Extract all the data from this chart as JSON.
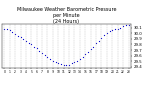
{
  "title": "Milwaukee Weather Barometric Pressure\nper Minute\n(24 Hours)",
  "title_fontsize": 3.5,
  "bg_color": "#ffffff",
  "dot_color": "#0000cc",
  "dot_size": 0.8,
  "grid_color": "#aaaaaa",
  "ylim": [
    29.38,
    30.16
  ],
  "xlim": [
    -0.5,
    23.5
  ],
  "xticks": [
    0,
    1,
    2,
    3,
    4,
    5,
    6,
    7,
    8,
    9,
    10,
    11,
    12,
    13,
    14,
    15,
    16,
    17,
    18,
    19,
    20,
    21,
    22,
    23
  ],
  "ytick_labels": [
    "29.4",
    "29.5",
    "29.6",
    "29.7",
    "29.8",
    "29.9",
    "30.0",
    "30.1"
  ],
  "ytick_values": [
    29.4,
    29.5,
    29.6,
    29.7,
    29.8,
    29.9,
    30.0,
    30.1
  ],
  "hours": [
    0,
    0.5,
    1,
    1.5,
    2,
    2.5,
    3,
    3.5,
    4,
    4.5,
    5,
    5.5,
    6,
    6.5,
    7,
    7.5,
    8,
    8.5,
    9,
    9.5,
    10,
    10.5,
    11,
    11.5,
    12,
    12.5,
    13,
    13.5,
    14,
    14.5,
    15,
    15.5,
    16,
    16.5,
    17,
    17.5,
    18,
    18.5,
    19,
    19.5,
    20,
    20.5,
    21,
    21.5,
    22,
    22.5,
    23
  ],
  "pressure": [
    30.08,
    30.07,
    30.05,
    30.02,
    29.99,
    29.96,
    29.93,
    29.9,
    29.87,
    29.83,
    29.8,
    29.76,
    29.73,
    29.69,
    29.65,
    29.61,
    29.58,
    29.54,
    29.51,
    29.48,
    29.46,
    29.45,
    29.44,
    29.44,
    29.44,
    29.46,
    29.48,
    29.51,
    29.54,
    29.58,
    29.62,
    29.66,
    29.71,
    29.76,
    29.82,
    29.87,
    29.92,
    29.97,
    30.01,
    30.04,
    30.06,
    30.07,
    30.08,
    30.1,
    30.13,
    30.15,
    30.14
  ]
}
